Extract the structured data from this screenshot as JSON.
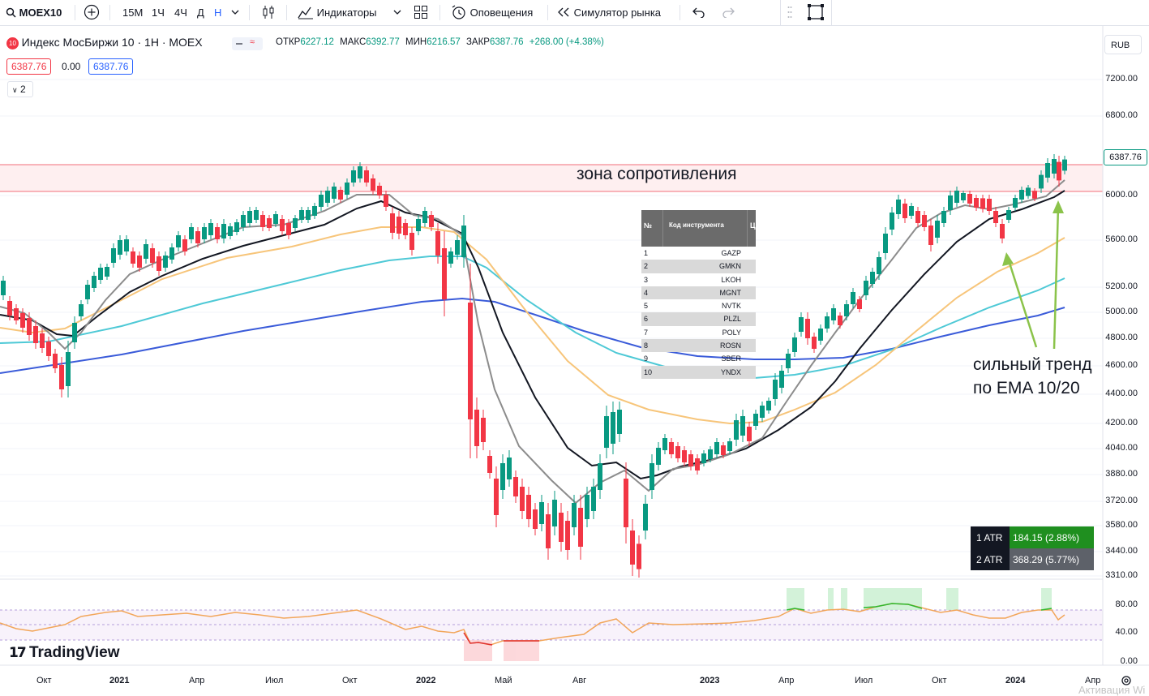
{
  "toolbar": {
    "symbol": "MOEX10",
    "intervals": [
      "15М",
      "1Ч",
      "4Ч",
      "Д",
      "Н"
    ],
    "active_interval": "Н",
    "indicators_label": "Индикаторы",
    "alerts_label": "Оповещения",
    "replay_label": "Симулятор рынка",
    "icons": [
      "search-icon",
      "add-symbol-icon",
      "chevron-down-icon",
      "candles-icon",
      "indicators-icon",
      "templates-icon",
      "alarm-clock-icon",
      "rewind-icon",
      "undo-icon",
      "redo-icon",
      "drag-handle-icon",
      "fullscreen-icon"
    ]
  },
  "legend": {
    "logo_text": "10",
    "title": "Индекс МосБиржи 10 · 1Н · MOEX",
    "o_label": "ОТКР",
    "o_value": "6227.12",
    "h_label": "МАКС",
    "h_value": "6392.77",
    "l_label": "МИН",
    "l_value": "6216.57",
    "c_label": "ЗАКР",
    "c_value": "6387.76",
    "change": "+268.00 (+4.38%)",
    "bid": "6387.76",
    "spread": "0.00",
    "ask": "6387.76",
    "collapsed_count": "2",
    "currency": "RUB"
  },
  "colors": {
    "up": "#089981",
    "down": "#f23645",
    "ema_fast": "#8c8c8c",
    "ema_slow": "#131722",
    "ema_orange": "#f7c57a",
    "ema_cyan": "#4ec9d6",
    "ema_blue": "#3a5bd9",
    "zone_line": "#f26e7a",
    "arrow": "#8bc34a",
    "rsi": "#f2a65a"
  },
  "annotations": {
    "zone_label": "зона сопротивления",
    "trend_line1": "сильный тренд",
    "trend_line2": "по EMA 10/20"
  },
  "atr": [
    {
      "label": "1 ATR",
      "value": "184.15 (2.88%)"
    },
    {
      "label": "2 ATR",
      "value": "368.29 (5.77%)"
    }
  ],
  "table": {
    "headers": [
      "№",
      "Код инструмента",
      "Ц"
    ],
    "rows": [
      {
        "n": "1",
        "code": "GAZP"
      },
      {
        "n": "2",
        "code": "GMKN"
      },
      {
        "n": "3",
        "code": "LKOH"
      },
      {
        "n": "4",
        "code": "MGNT"
      },
      {
        "n": "5",
        "code": "NVTK"
      },
      {
        "n": "6",
        "code": "PLZL"
      },
      {
        "n": "7",
        "code": "POLY"
      },
      {
        "n": "8",
        "code": "ROSN"
      },
      {
        "n": "9",
        "code": "SBER"
      },
      {
        "n": "10",
        "code": "YNDX"
      }
    ]
  },
  "branding": "TradingView",
  "watermark": "Активация Wi",
  "chart_data": {
    "type": "candlestick",
    "price_axis": {
      "scale": "log",
      "ticks": [
        "7200.00",
        "6800.00",
        "6000.00",
        "5600.00",
        "5200.00",
        "5000.00",
        "4800.00",
        "4600.00",
        "4400.00",
        "4200.00",
        "4040.00",
        "3880.00",
        "3720.00",
        "3580.00",
        "3440.00",
        "3310.00"
      ],
      "last_price": "6387.76"
    },
    "time_axis": {
      "ticks": [
        {
          "label": "Окт",
          "bold": false
        },
        {
          "label": "2021",
          "bold": true
        },
        {
          "label": "Апр",
          "bold": false
        },
        {
          "label": "Июл",
          "bold": false
        },
        {
          "label": "Окт",
          "bold": false
        },
        {
          "label": "2022",
          "bold": true
        },
        {
          "label": "Май",
          "bold": false
        },
        {
          "label": "Авг",
          "bold": false
        },
        {
          "label": "2023",
          "bold": true
        },
        {
          "label": "Апр",
          "bold": false
        },
        {
          "label": "Июл",
          "bold": false
        },
        {
          "label": "Окт",
          "bold": false
        },
        {
          "label": "2024",
          "bold": true
        },
        {
          "label": "Апр",
          "bold": false
        }
      ]
    },
    "resistance_zone": {
      "lower": 6050,
      "upper": 6330
    },
    "series": [
      {
        "name": "EMA 10",
        "color": "#8c8c8c"
      },
      {
        "name": "EMA 20",
        "color": "#131722"
      },
      {
        "name": "EMA 50",
        "color": "#f7c57a"
      },
      {
        "name": "EMA 100",
        "color": "#4ec9d6"
      },
      {
        "name": "EMA 200",
        "color": "#3a5bd9"
      }
    ],
    "oscillator": {
      "ticks": [
        "80.00",
        "40.00",
        "0.00"
      ],
      "upper_band": 70,
      "lower_band": 30
    }
  }
}
